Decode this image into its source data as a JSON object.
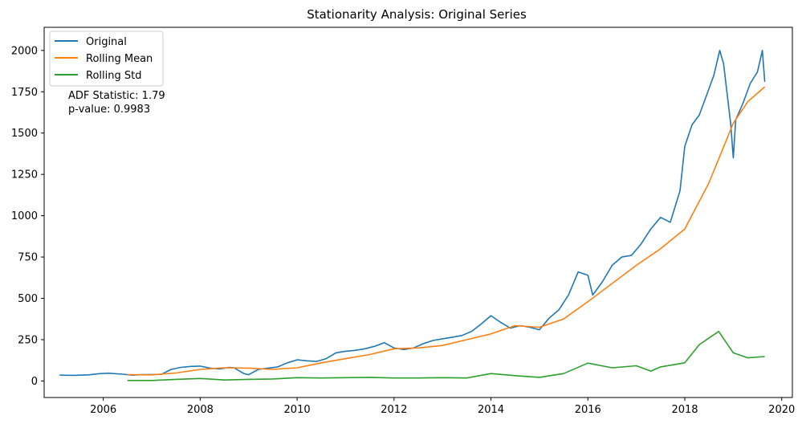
{
  "chart_data": {
    "type": "line",
    "title": "Stationarity Analysis: Original Series",
    "xlabel": "",
    "ylabel": "",
    "xlim": [
      2004.78,
      2020.22
    ],
    "ylim": [
      -100,
      2140
    ],
    "x_ticks": [
      2006,
      2008,
      2010,
      2012,
      2014,
      2016,
      2018,
      2020
    ],
    "y_ticks": [
      0,
      250,
      500,
      750,
      1000,
      1250,
      1500,
      1750,
      2000
    ],
    "x_tick_labels": [
      "2006",
      "2008",
      "2010",
      "2012",
      "2014",
      "2016",
      "2018",
      "2020"
    ],
    "y_tick_labels": [
      "0",
      "250",
      "500",
      "750",
      "1000",
      "1250",
      "1500",
      "1750",
      "2000"
    ],
    "grid": false,
    "legend_position": "top-left",
    "annotation": [
      "ADF Statistic: 1.79",
      "p-value: 0.9983"
    ],
    "series": [
      {
        "name": "Original",
        "color": "#1f77b4",
        "points": [
          [
            2005.1,
            35
          ],
          [
            2005.4,
            34
          ],
          [
            2005.7,
            37
          ],
          [
            2005.9,
            44
          ],
          [
            2006.1,
            47
          ],
          [
            2006.4,
            41
          ],
          [
            2006.6,
            35
          ],
          [
            2006.8,
            38
          ],
          [
            2007.0,
            39
          ],
          [
            2007.2,
            40
          ],
          [
            2007.4,
            70
          ],
          [
            2007.6,
            82
          ],
          [
            2007.8,
            88
          ],
          [
            2008.0,
            90
          ],
          [
            2008.2,
            78
          ],
          [
            2008.4,
            73
          ],
          [
            2008.6,
            82
          ],
          [
            2008.7,
            80
          ],
          [
            2008.9,
            45
          ],
          [
            2009.0,
            38
          ],
          [
            2009.2,
            70
          ],
          [
            2009.4,
            78
          ],
          [
            2009.6,
            85
          ],
          [
            2009.8,
            110
          ],
          [
            2010.0,
            128
          ],
          [
            2010.2,
            122
          ],
          [
            2010.4,
            118
          ],
          [
            2010.6,
            135
          ],
          [
            2010.8,
            170
          ],
          [
            2011.0,
            180
          ],
          [
            2011.2,
            185
          ],
          [
            2011.4,
            195
          ],
          [
            2011.6,
            210
          ],
          [
            2011.8,
            232
          ],
          [
            2012.0,
            200
          ],
          [
            2012.2,
            190
          ],
          [
            2012.4,
            200
          ],
          [
            2012.6,
            225
          ],
          [
            2012.8,
            245
          ],
          [
            2013.0,
            255
          ],
          [
            2013.2,
            265
          ],
          [
            2013.4,
            275
          ],
          [
            2013.6,
            300
          ],
          [
            2013.8,
            345
          ],
          [
            2014.0,
            395
          ],
          [
            2014.2,
            355
          ],
          [
            2014.4,
            320
          ],
          [
            2014.6,
            335
          ],
          [
            2014.8,
            325
          ],
          [
            2015.0,
            310
          ],
          [
            2015.2,
            380
          ],
          [
            2015.4,
            430
          ],
          [
            2015.6,
            520
          ],
          [
            2015.8,
            660
          ],
          [
            2016.0,
            640
          ],
          [
            2016.1,
            520
          ],
          [
            2016.3,
            600
          ],
          [
            2016.5,
            700
          ],
          [
            2016.7,
            750
          ],
          [
            2016.9,
            760
          ],
          [
            2017.1,
            830
          ],
          [
            2017.3,
            920
          ],
          [
            2017.5,
            990
          ],
          [
            2017.7,
            960
          ],
          [
            2017.9,
            1150
          ],
          [
            2018.0,
            1420
          ],
          [
            2018.15,
            1550
          ],
          [
            2018.3,
            1610
          ],
          [
            2018.45,
            1730
          ],
          [
            2018.6,
            1850
          ],
          [
            2018.72,
            2000
          ],
          [
            2018.8,
            1920
          ],
          [
            2018.95,
            1550
          ],
          [
            2019.0,
            1350
          ],
          [
            2019.05,
            1580
          ],
          [
            2019.2,
            1680
          ],
          [
            2019.35,
            1800
          ],
          [
            2019.5,
            1870
          ],
          [
            2019.6,
            2000
          ],
          [
            2019.65,
            1810
          ]
        ]
      },
      {
        "name": "Rolling Mean",
        "color": "#ff7f0e",
        "points": [
          [
            2006.5,
            38
          ],
          [
            2007.0,
            37
          ],
          [
            2007.5,
            48
          ],
          [
            2008.0,
            70
          ],
          [
            2008.5,
            80
          ],
          [
            2009.0,
            78
          ],
          [
            2009.5,
            70
          ],
          [
            2010.0,
            80
          ],
          [
            2010.5,
            110
          ],
          [
            2011.0,
            135
          ],
          [
            2011.5,
            160
          ],
          [
            2012.0,
            195
          ],
          [
            2012.5,
            200
          ],
          [
            2013.0,
            215
          ],
          [
            2013.5,
            250
          ],
          [
            2014.0,
            285
          ],
          [
            2014.5,
            335
          ],
          [
            2015.0,
            325
          ],
          [
            2015.5,
            375
          ],
          [
            2016.0,
            480
          ],
          [
            2016.5,
            590
          ],
          [
            2017.0,
            700
          ],
          [
            2017.5,
            800
          ],
          [
            2018.0,
            920
          ],
          [
            2018.5,
            1200
          ],
          [
            2019.0,
            1560
          ],
          [
            2019.3,
            1690
          ],
          [
            2019.65,
            1780
          ]
        ]
      },
      {
        "name": "Rolling Std",
        "color": "#2ca02c",
        "points": [
          [
            2006.5,
            3
          ],
          [
            2007.0,
            3
          ],
          [
            2007.5,
            10
          ],
          [
            2008.0,
            15
          ],
          [
            2008.5,
            6
          ],
          [
            2009.0,
            10
          ],
          [
            2009.5,
            12
          ],
          [
            2010.0,
            20
          ],
          [
            2010.5,
            18
          ],
          [
            2011.0,
            20
          ],
          [
            2011.5,
            22
          ],
          [
            2012.0,
            18
          ],
          [
            2012.5,
            18
          ],
          [
            2013.0,
            20
          ],
          [
            2013.5,
            18
          ],
          [
            2014.0,
            45
          ],
          [
            2014.5,
            32
          ],
          [
            2015.0,
            22
          ],
          [
            2015.5,
            45
          ],
          [
            2016.0,
            108
          ],
          [
            2016.5,
            80
          ],
          [
            2017.0,
            92
          ],
          [
            2017.3,
            60
          ],
          [
            2017.5,
            85
          ],
          [
            2018.0,
            110
          ],
          [
            2018.3,
            220
          ],
          [
            2018.7,
            300
          ],
          [
            2019.0,
            170
          ],
          [
            2019.3,
            140
          ],
          [
            2019.65,
            148
          ]
        ]
      }
    ]
  }
}
